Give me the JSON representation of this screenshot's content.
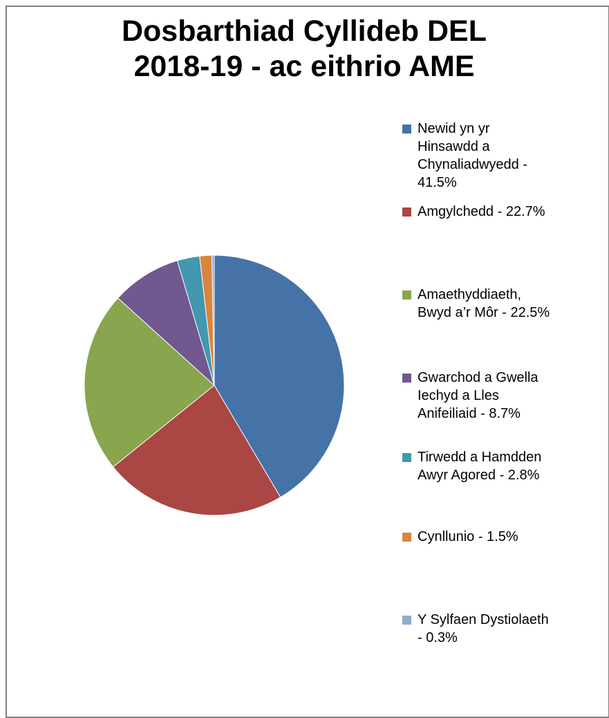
{
  "chart_data": {
    "type": "pie",
    "title_lines": [
      "Dosbarthiad Cyllideb DEL",
      "2018-19 - ac eithrio AME"
    ],
    "categories": [
      "Newid yn yr Hinsawdd a Chynaliadwyedd - 41.5%",
      "Amgylchedd - 22.7%",
      "Amaethyddiaeth, Bwyd a’r Môr - 22.5%",
      "Gwarchod a Gwella Iechyd a Lles Anifeiliaid - 8.7%",
      "Tirwedd a Hamdden Awyr Agored - 2.8%",
      "Cynllunio - 1.5%",
      "Y Sylfaen Dystiolaeth - 0.3%"
    ],
    "values": [
      41.5,
      22.7,
      22.5,
      8.7,
      2.8,
      1.5,
      0.3
    ],
    "colors": [
      "#4572A7",
      "#AA4643",
      "#89A54E",
      "#71588F",
      "#4198AF",
      "#DB843D",
      "#93A9CF"
    ],
    "legend": {
      "position": "right",
      "lines": [
        [
          "Newid yn yr",
          "Hinsawdd a",
          "Chynaliadwyedd -",
          "41.5%"
        ],
        [
          "Amgylchedd - 22.7%"
        ],
        [
          "Amaethyddiaeth,",
          "Bwyd a’r Môr - 22.5%"
        ],
        [
          "Gwarchod a Gwella",
          "Iechyd a Lles",
          "Anifeiliaid - 8.7%"
        ],
        [
          "Tirwedd a Hamdden",
          "Awyr Agored - 2.8%"
        ],
        [
          "Cynllunio - 1.5%"
        ],
        [
          "Y Sylfaen Dystiolaeth",
          "- 0.3%"
        ]
      ]
    }
  }
}
